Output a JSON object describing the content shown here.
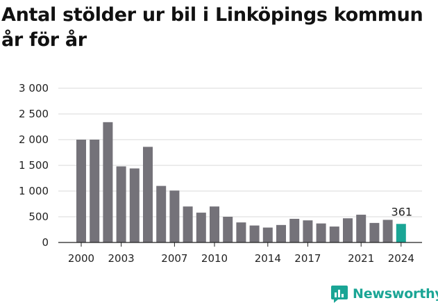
{
  "chart_data": {
    "type": "bar",
    "title": "Antal stölder ur bil i Linköpings kommun år för år",
    "categories": [
      2000,
      2001,
      2002,
      2003,
      2004,
      2005,
      2006,
      2007,
      2008,
      2009,
      2010,
      2011,
      2012,
      2013,
      2014,
      2015,
      2016,
      2017,
      2018,
      2019,
      2020,
      2021,
      2022,
      2023,
      2024
    ],
    "values": [
      2000,
      2000,
      2340,
      1480,
      1440,
      1860,
      1100,
      1010,
      700,
      580,
      700,
      500,
      390,
      330,
      290,
      340,
      460,
      430,
      370,
      310,
      470,
      540,
      380,
      440,
      361
    ],
    "xtick_labels": [
      "2000",
      "2003",
      "2007",
      "2010",
      "2014",
      "2017",
      "2021",
      "2024"
    ],
    "ytick_labels": [
      "0",
      "500",
      "1 000",
      "1 500",
      "2 000",
      "2 500",
      "3 000"
    ],
    "ylim": [
      0,
      3000
    ],
    "grid": true,
    "highlight": {
      "category": 2024,
      "label": "361",
      "color": "#1aa595"
    },
    "bar_color": "#747279"
  },
  "brand": {
    "name": "Newsworthy",
    "color": "#1aa595",
    "icon": "newsworthy-logo-icon"
  }
}
